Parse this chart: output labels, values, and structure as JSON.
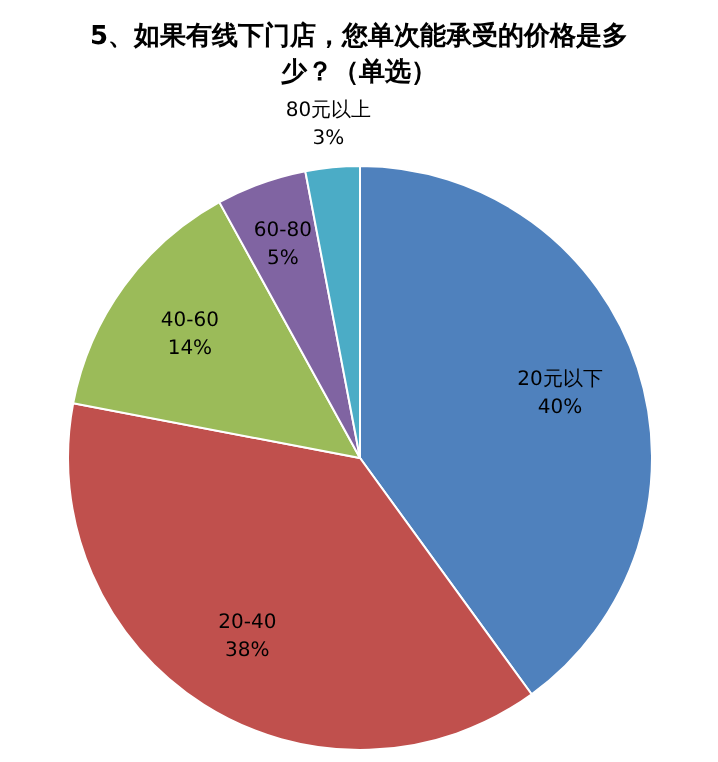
{
  "chart_data": {
    "type": "pie",
    "title": "5、如果有线下门店，您单次能承受的价格是多少？（单选）",
    "categories": [
      "20元以下",
      "20-40",
      "40-60",
      "60-80",
      "80元以上"
    ],
    "values": [
      40,
      38,
      14,
      5,
      3
    ],
    "value_labels": [
      "40%",
      "38%",
      "14%",
      "5%",
      "3%"
    ],
    "colors": [
      "#4f81bd",
      "#c0504d",
      "#9bbb59",
      "#8064a2",
      "#4bacc6"
    ]
  }
}
